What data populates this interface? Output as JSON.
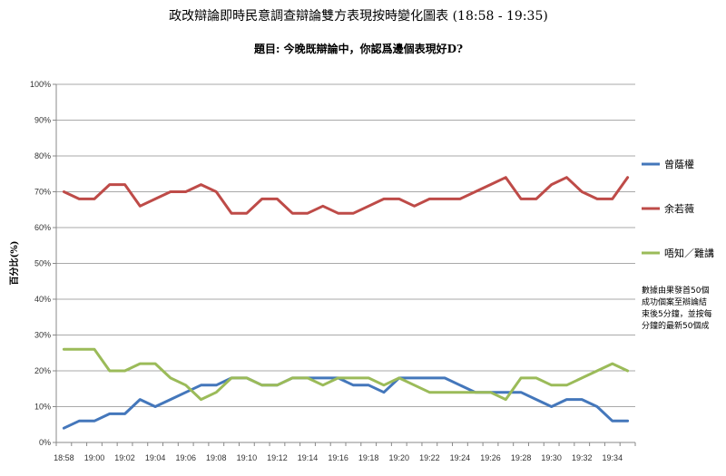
{
  "chart_data": {
    "type": "line",
    "title": "政改辯論即時民意調查辯論雙方表現按時變化圖表 (18:58 - 19:35)",
    "subtitle": "題目: 今晚既辯論中，你認爲邊個表現好D?",
    "ylabel": "百分比(%)",
    "xlabel": "",
    "ylim": [
      0,
      100
    ],
    "y_ticks": [
      "0%",
      "10%",
      "20%",
      "30%",
      "40%",
      "50%",
      "60%",
      "70%",
      "80%",
      "90%",
      "100%"
    ],
    "x_tick_labels": [
      "18:58",
      "19:00",
      "19:02",
      "19:04",
      "19:06",
      "19:08",
      "19:10",
      "19:12",
      "19:14",
      "19:16",
      "19:18",
      "19:20",
      "19:22",
      "19:24",
      "19:26",
      "19:28",
      "19:30",
      "19:32",
      "19:34"
    ],
    "x": [
      "18:58",
      "18:59",
      "19:00",
      "19:01",
      "19:02",
      "19:03",
      "19:04",
      "19:05",
      "19:06",
      "19:07",
      "19:08",
      "19:09",
      "19:10",
      "19:11",
      "19:12",
      "19:13",
      "19:14",
      "19:15",
      "19:16",
      "19:17",
      "19:18",
      "19:19",
      "19:20",
      "19:21",
      "19:22",
      "19:23",
      "19:24",
      "19:25",
      "19:26",
      "19:27",
      "19:28",
      "19:29",
      "19:30",
      "19:31",
      "19:32",
      "19:33",
      "19:34",
      "19:35"
    ],
    "grid": true,
    "legend_position": "right",
    "series": [
      {
        "name": "曾蔭權",
        "color": "#4477BB",
        "values": [
          4,
          6,
          6,
          8,
          8,
          12,
          10,
          12,
          14,
          16,
          16,
          18,
          18,
          16,
          16,
          18,
          18,
          18,
          18,
          16,
          16,
          14,
          18,
          18,
          18,
          18,
          16,
          14,
          14,
          14,
          14,
          12,
          10,
          12,
          12,
          10,
          6,
          6
        ]
      },
      {
        "name": "余若薇",
        "color": "#BE4B48",
        "values": [
          70,
          68,
          68,
          72,
          72,
          66,
          68,
          70,
          70,
          72,
          70,
          64,
          64,
          68,
          68,
          64,
          64,
          66,
          64,
          64,
          66,
          68,
          68,
          66,
          68,
          68,
          68,
          70,
          72,
          74,
          68,
          68,
          72,
          74,
          70,
          68,
          68,
          74
        ]
      },
      {
        "name": "唔知／難講",
        "color": "#9BBB59",
        "values": [
          26,
          26,
          26,
          20,
          20,
          22,
          22,
          18,
          16,
          12,
          14,
          18,
          18,
          16,
          16,
          18,
          18,
          16,
          18,
          18,
          18,
          16,
          18,
          16,
          14,
          14,
          14,
          14,
          14,
          12,
          18,
          18,
          16,
          16,
          18,
          20,
          22,
          20
        ]
      }
    ],
    "annotation": [
      "數據由果發首50個",
      "成功個案至辯論結",
      "束後5分鐘，並按每",
      "分鐘的最新50個成"
    ]
  }
}
